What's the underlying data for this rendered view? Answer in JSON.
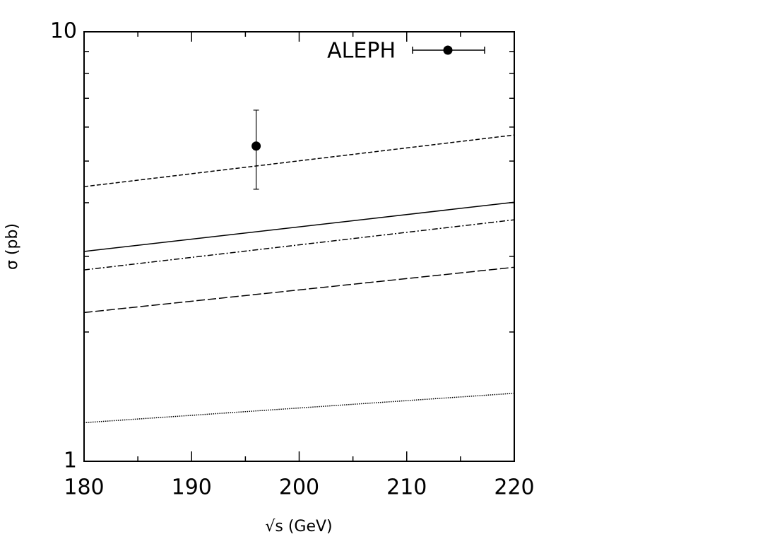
{
  "chart_data": {
    "type": "line",
    "x_label": "√s (GeV)",
    "y_label": "σ (pb)",
    "xlim": [
      180,
      220
    ],
    "ylim": [
      1,
      10
    ],
    "log_y": true,
    "xticks": [
      180,
      190,
      200,
      210,
      220
    ],
    "xminor_ticks": [
      185,
      195,
      205,
      215
    ],
    "yticks": [
      1,
      10
    ],
    "yminor_ticks": [
      2,
      3,
      4,
      5,
      6,
      7,
      8,
      9
    ],
    "color": "#000000",
    "legend": "upper right",
    "x": [
      180,
      220
    ],
    "curves": [
      {
        "dash": "dashed",
        "values": [
          4.36,
          5.75
        ]
      },
      {
        "dash": "solid",
        "values": [
          3.08,
          4.01
        ]
      },
      {
        "dash": "dash-dot",
        "values": [
          2.79,
          3.65
        ]
      },
      {
        "dash": "long-dashed",
        "values": [
          2.22,
          2.83
        ]
      },
      {
        "dash": "dotted",
        "values": [
          1.23,
          1.44
        ]
      }
    ],
    "points": [
      {
        "name": "ALEPH",
        "x": 196,
        "y": 5.42,
        "err_minus": 1.12,
        "err_plus": 1.15
      }
    ]
  }
}
